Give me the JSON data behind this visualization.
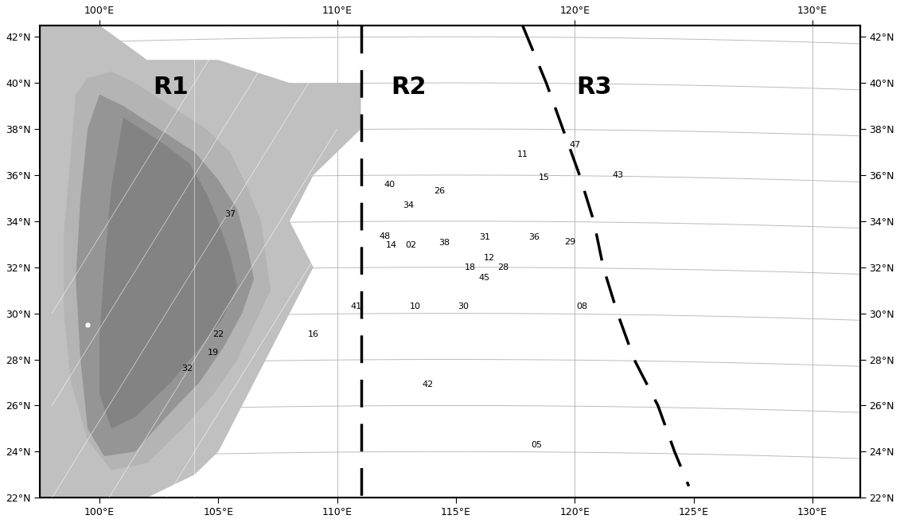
{
  "lon_min": 97.5,
  "lon_max": 132,
  "lat_min": 22,
  "lat_max": 42.5,
  "xtick_labels_bottom": [
    "100°E",
    "105°E",
    "110°E",
    "115°E",
    "120°E",
    "125°E",
    "130°E"
  ],
  "xtick_labels_top": [
    "100°E",
    "110°E",
    "120°E",
    "130°E"
  ],
  "xtick_positions_bottom": [
    100,
    105,
    110,
    115,
    120,
    125,
    130
  ],
  "xtick_positions_top": [
    100,
    110,
    120,
    130
  ],
  "ytick_labels": [
    "22°N",
    "24°N",
    "26°N",
    "28°N",
    "30°N",
    "32°N",
    "34°N",
    "36°N",
    "38°N",
    "40°N",
    "42°N"
  ],
  "ytick_positions": [
    22,
    24,
    26,
    28,
    30,
    32,
    34,
    36,
    38,
    40,
    42
  ],
  "region_labels": [
    {
      "text": "R1",
      "lon": 103.0,
      "lat": 39.8,
      "fontsize": 22
    },
    {
      "text": "R2",
      "lon": 113.0,
      "lat": 39.8,
      "fontsize": 22
    },
    {
      "text": "R3",
      "lon": 120.8,
      "lat": 39.8,
      "fontsize": 22
    }
  ],
  "gridlines_lon": [
    100,
    110,
    120,
    130
  ],
  "gridlines_lat": [
    24,
    26,
    28,
    30,
    32,
    34,
    36,
    38,
    40,
    42
  ],
  "curved_grid_lons": [
    100,
    110,
    120,
    130
  ],
  "dashed_line1_lons": [
    111.0,
    111.0,
    111.0
  ],
  "dashed_line1_lats": [
    42.5,
    30.0,
    22.5
  ],
  "dashed_line2_pts": [
    [
      117.8,
      42.5
    ],
    [
      118.8,
      40.0
    ],
    [
      119.5,
      38.0
    ],
    [
      120.2,
      36.0
    ],
    [
      120.8,
      34.0
    ],
    [
      121.2,
      32.0
    ],
    [
      121.8,
      30.0
    ],
    [
      122.5,
      28.0
    ],
    [
      123.5,
      26.0
    ],
    [
      124.2,
      24.0
    ],
    [
      124.8,
      22.5
    ]
  ],
  "data_points": [
    {
      "id": "37",
      "lon": 105.5,
      "lat": 34.3
    },
    {
      "id": "40",
      "lon": 112.2,
      "lat": 35.6
    },
    {
      "id": "26",
      "lon": 114.3,
      "lat": 35.3
    },
    {
      "id": "34",
      "lon": 113.0,
      "lat": 34.7
    },
    {
      "id": "48",
      "lon": 112.0,
      "lat": 33.35
    },
    {
      "id": "14",
      "lon": 112.3,
      "lat": 32.95
    },
    {
      "id": "02",
      "lon": 113.1,
      "lat": 32.95
    },
    {
      "id": "38",
      "lon": 114.5,
      "lat": 33.05
    },
    {
      "id": "31",
      "lon": 116.2,
      "lat": 33.3
    },
    {
      "id": "12",
      "lon": 116.4,
      "lat": 32.4
    },
    {
      "id": "18",
      "lon": 115.6,
      "lat": 32.0
    },
    {
      "id": "28",
      "lon": 117.0,
      "lat": 32.0
    },
    {
      "id": "45",
      "lon": 116.2,
      "lat": 31.55
    },
    {
      "id": "36",
      "lon": 118.3,
      "lat": 33.3
    },
    {
      "id": "29",
      "lon": 119.8,
      "lat": 33.1
    },
    {
      "id": "41",
      "lon": 110.8,
      "lat": 30.3
    },
    {
      "id": "10",
      "lon": 113.3,
      "lat": 30.3
    },
    {
      "id": "30",
      "lon": 115.3,
      "lat": 30.3
    },
    {
      "id": "22",
      "lon": 105.0,
      "lat": 29.1
    },
    {
      "id": "16",
      "lon": 109.0,
      "lat": 29.1
    },
    {
      "id": "19",
      "lon": 104.8,
      "lat": 28.3
    },
    {
      "id": "32",
      "lon": 103.7,
      "lat": 27.6
    },
    {
      "id": "42",
      "lon": 113.8,
      "lat": 26.9
    },
    {
      "id": "11",
      "lon": 117.8,
      "lat": 36.9
    },
    {
      "id": "47",
      "lon": 120.0,
      "lat": 37.3
    },
    {
      "id": "15",
      "lon": 118.7,
      "lat": 35.9
    },
    {
      "id": "43",
      "lon": 121.8,
      "lat": 36.0
    },
    {
      "id": "08",
      "lon": 120.3,
      "lat": 30.3
    },
    {
      "id": "05",
      "lon": 118.4,
      "lat": 24.3
    }
  ],
  "background_color": "#ffffff"
}
